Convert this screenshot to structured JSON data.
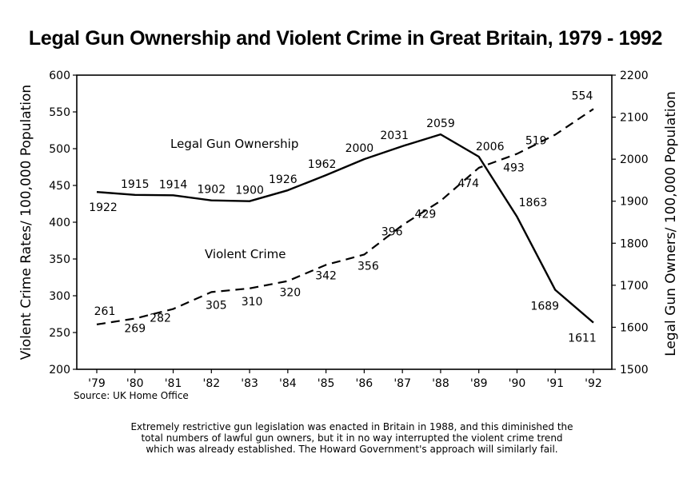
{
  "chart_data": {
    "type": "line",
    "title": "Legal Gun Ownership and Violent Crime in Great Britain, 1979 - 1992",
    "categories": [
      "'79",
      "'80",
      "'81",
      "'82",
      "'83",
      "'84",
      "'85",
      "'86",
      "'87",
      "'88",
      "'89",
      "'90",
      "'91",
      "'92"
    ],
    "y_left": {
      "label": "Violent Crime Rates/ 100,000 Population",
      "range": [
        200,
        600
      ],
      "ticks": [
        "200",
        "250",
        "300",
        "350",
        "400",
        "450",
        "500",
        "550",
        "600"
      ]
    },
    "y_right": {
      "label": "Legal Gun Owners/ 100,000 Population",
      "range": [
        1500,
        2200
      ],
      "ticks": [
        "1500",
        "1600",
        "1700",
        "1800",
        "1900",
        "2000",
        "2100",
        "2200"
      ]
    },
    "series": [
      {
        "name": "Legal Gun Ownership",
        "axis": "right",
        "style": "solid",
        "values": [
          1922,
          1915,
          1914,
          1902,
          1900,
          1926,
          1962,
          2000,
          2031,
          2059,
          2006,
          1863,
          1689,
          1611
        ],
        "labels": [
          "1922",
          "1915",
          "1914",
          "1902",
          "1900",
          "1926",
          "1962",
          "2000",
          "2031",
          "2059",
          "2006",
          "1863",
          "1689",
          "1611"
        ]
      },
      {
        "name": "Violent Crime",
        "axis": "left",
        "style": "dashed",
        "values": [
          261,
          269,
          282,
          305,
          310,
          320,
          342,
          356,
          396,
          429,
          474,
          493,
          519,
          554
        ],
        "labels": [
          "261",
          "269",
          "282",
          "305",
          "310",
          "320",
          "342",
          "356",
          "396",
          "429",
          "474",
          "493",
          "519",
          "554"
        ]
      }
    ],
    "grid": false,
    "legend": "inline labels"
  },
  "source": "Source: UK Home Office",
  "footnote": [
    "Extremely restrictive gun legislation was enacted in Britain in 1988, and this diminished the",
    "total numbers of lawful gun owners, but it in no way interrupted the violent crime trend",
    "which was already established. The Howard Government's approach will similarly fail."
  ]
}
